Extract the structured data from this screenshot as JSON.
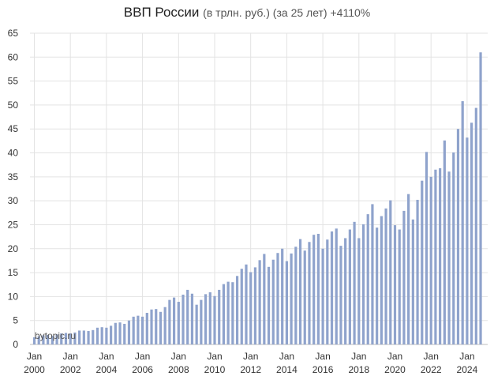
{
  "chart_data": {
    "type": "bar",
    "title": "ВВП России",
    "subtitle": "(в трлн. руб.) (за 25 лет) +4110%",
    "xlabel": "",
    "ylabel": "",
    "ylim": [
      0,
      65
    ],
    "y_ticks": [
      0,
      5,
      10,
      15,
      20,
      25,
      30,
      35,
      40,
      45,
      50,
      55,
      60,
      65
    ],
    "x_ticks": [
      {
        "month": "Jan",
        "year": "2000"
      },
      {
        "month": "Jan",
        "year": "2002"
      },
      {
        "month": "Jan",
        "year": "2004"
      },
      {
        "month": "Jan",
        "year": "2006"
      },
      {
        "month": "Jan",
        "year": "2008"
      },
      {
        "month": "Jan",
        "year": "2010"
      },
      {
        "month": "Jan",
        "year": "2012"
      },
      {
        "month": "Jan",
        "year": "2014"
      },
      {
        "month": "Jan",
        "year": "2016"
      },
      {
        "month": "Jan",
        "year": "2018"
      },
      {
        "month": "Jan",
        "year": "2020"
      },
      {
        "month": "Jan",
        "year": "2022"
      },
      {
        "month": "Jan",
        "year": "2024"
      }
    ],
    "grid": true,
    "bar_color": "#8fa3cc",
    "watermark": "bytopic.ru",
    "series": [
      {
        "values": [
          1.5,
          1.7,
          1.9,
          2.0,
          1.8,
          2.1,
          2.3,
          2.4,
          2.3,
          2.5,
          2.9,
          2.9,
          2.8,
          3.0,
          3.5,
          3.6,
          3.5,
          3.9,
          4.5,
          4.6,
          4.3,
          5.0,
          5.8,
          6.0,
          5.8,
          6.6,
          7.3,
          7.4,
          6.8,
          7.8,
          9.3,
          9.8,
          8.9,
          10.4,
          11.4,
          10.6,
          8.3,
          9.3,
          10.5,
          10.9,
          10.1,
          11.4,
          12.6,
          13.1,
          13.0,
          14.3,
          15.8,
          16.7,
          15.1,
          16.1,
          17.6,
          18.9,
          16.2,
          17.7,
          19.1,
          20.0,
          17.4,
          19.0,
          20.4,
          22.0,
          19.6,
          21.4,
          22.9,
          23.1,
          20.0,
          21.9,
          23.6,
          24.2,
          20.6,
          22.2,
          24.0,
          25.6,
          22.2,
          25.1,
          27.2,
          29.3,
          24.4,
          26.8,
          28.4,
          30.1,
          24.9,
          24.0,
          27.9,
          31.4,
          26.1,
          30.2,
          34.2,
          40.2,
          35.0,
          36.5,
          36.8,
          42.6,
          36.1,
          40.1,
          45.0,
          50.8,
          43.2,
          46.3,
          49.4,
          61.0
        ]
      }
    ]
  }
}
